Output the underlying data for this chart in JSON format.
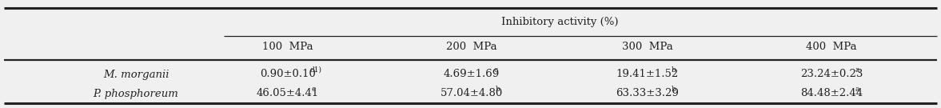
{
  "title": "Inhibitory activity (%)",
  "col_headers": [
    "100  MPa",
    "200  MPa",
    "300  MPa",
    "400  MPa"
  ],
  "row_labels": [
    "M. morganii",
    "P. phosphoreum"
  ],
  "base_values_row1": [
    "0.90±0.10",
    "4.69±1.69",
    "19.41±1.52",
    "23.24±0.23"
  ],
  "base_values_row2": [
    "46.05±4.41",
    "57.04±4.80",
    "63.33±3.29",
    "84.48±2.44"
  ],
  "superscripts_row1": [
    "d1)",
    "c",
    "b",
    "a"
  ],
  "superscripts_row2": [
    "c",
    "b",
    "b",
    "a"
  ],
  "text_color": "#222222",
  "bg_color": "#f0f0f0",
  "line_color": "#222222",
  "fontsize": 9.5,
  "sup_fontsize": 6.5
}
